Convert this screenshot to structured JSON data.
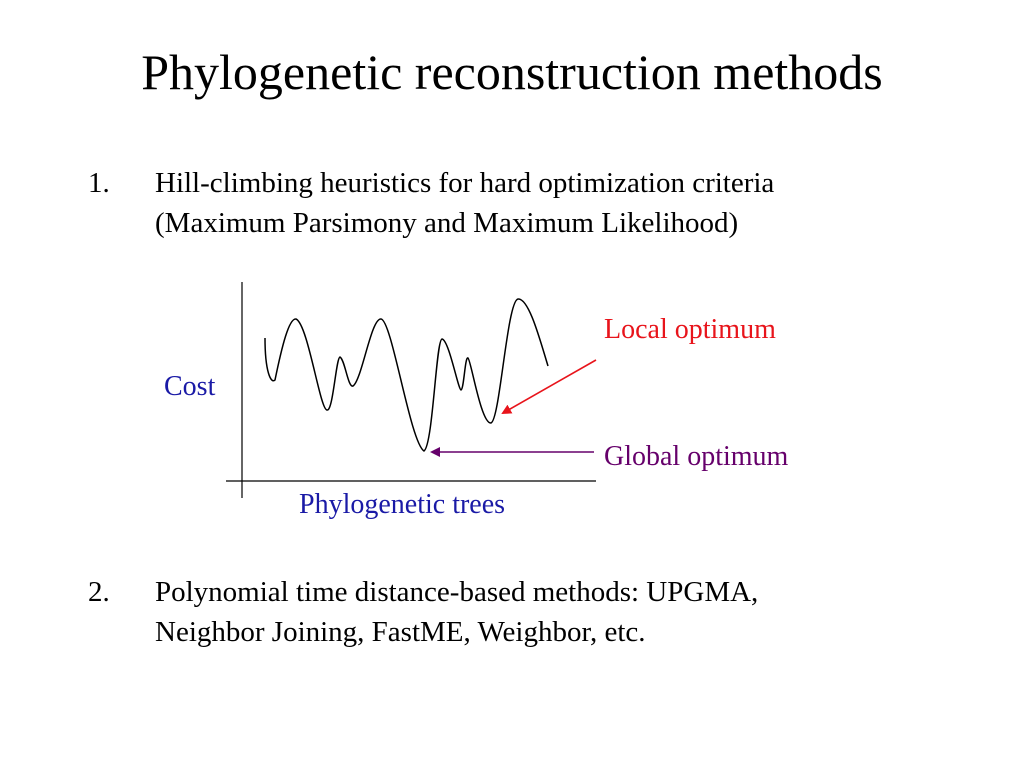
{
  "slide": {
    "title": "Phylogenetic reconstruction methods"
  },
  "bullets": [
    {
      "number": "1.",
      "lines": [
        "Hill-climbing heuristics for hard optimization criteria",
        "(Maximum Parsimony and Maximum Likelihood)"
      ]
    },
    {
      "number": "2.",
      "lines": [
        "Polynomial time distance-based methods: UPGMA,",
        "Neighbor Joining, FastME, Weighbor, etc."
      ]
    }
  ],
  "diagram": {
    "y_axis_label": "Cost",
    "x_axis_label": "Phylogenetic trees",
    "local_optimum_label": "Local optimum",
    "global_optimum_label": "Global optimum",
    "colors": {
      "axis_labels": "#1a1aa6",
      "local_optimum": "#e8141b",
      "global_optimum": "#66006b",
      "curve": "#000000"
    }
  }
}
